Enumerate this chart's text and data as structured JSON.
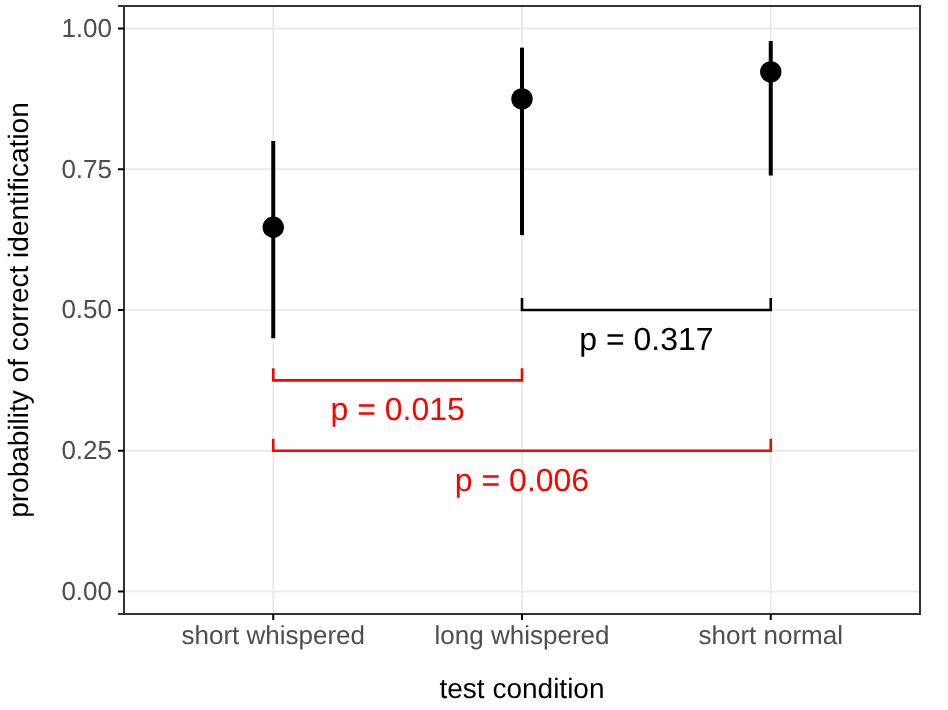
{
  "chart_data": {
    "type": "scatter",
    "xlabel": "test condition",
    "ylabel": "probability of correct identification",
    "categories": [
      "short whispered",
      "long whispered",
      "short normal"
    ],
    "values": [
      0.647,
      0.875,
      0.923
    ],
    "errors": [
      [
        0.45,
        0.8
      ],
      [
        0.633,
        0.966
      ],
      [
        0.739,
        0.978
      ]
    ],
    "color": "#000000",
    "marker": "circle",
    "ylim": [
      -0.04,
      1.04
    ],
    "yticks": [
      {
        "value": 0,
        "label": "0.00"
      },
      {
        "value": 0.25,
        "label": "0.25"
      },
      {
        "value": 0.5,
        "label": "0.50"
      },
      {
        "value": 0.75,
        "label": "0.75"
      },
      {
        "value": 1,
        "label": "1.00"
      }
    ],
    "grid": true,
    "annotations": [
      "p = 0.317",
      "p = 0.015",
      "p = 0.006"
    ]
  }
}
